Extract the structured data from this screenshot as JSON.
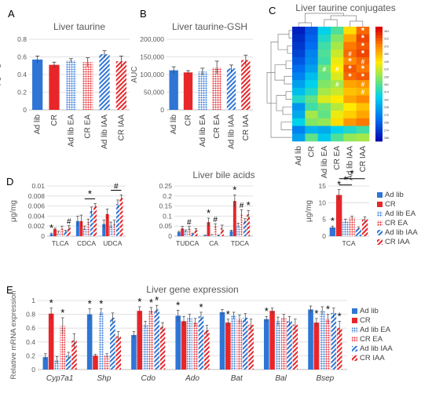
{
  "series": {
    "names": [
      "Ad lib",
      "CR",
      "Ad lib EA",
      "CR EA",
      "Ad lib IAA",
      "CR IAA"
    ],
    "colors": [
      "#2e75d6",
      "#e8262a",
      "#2e75d6",
      "#e8262a",
      "#2e75d6",
      "#e8262a"
    ],
    "patterns": [
      "solid",
      "solid",
      "dots",
      "dots",
      "hatch",
      "hatch"
    ]
  },
  "panels": {
    "A": "A",
    "B": "B",
    "C": "C",
    "D": "D",
    "E": "E"
  },
  "chart_data": [
    {
      "panel": "A",
      "type": "bar",
      "title": "Liver taurine",
      "ylabel": "μg/mg",
      "categories": [
        "Ad lib",
        "CR",
        "Ad lib EA",
        "CR EA",
        "Ad lib IAA",
        "CR IAA"
      ],
      "values": [
        0.57,
        0.51,
        0.56,
        0.54,
        0.63,
        0.55
      ],
      "errors": [
        0.04,
        0.03,
        0.02,
        0.05,
        0.04,
        0.06
      ],
      "ylim": [
        0,
        0.8
      ],
      "yticks": [
        0,
        0.2,
        0.4,
        0.6,
        0.8
      ],
      "ytick_labels": [
        "0",
        "0.2",
        "0.4",
        "0.6",
        "0.8"
      ]
    },
    {
      "panel": "B",
      "type": "bar",
      "title": "Liver taurine-GSH",
      "ylabel": "AUC",
      "categories": [
        "Ad lib",
        "CR",
        "Ad lib EA",
        "CR EA",
        "Ad lib IAA",
        "CR IAA"
      ],
      "values": [
        112000,
        106000,
        108000,
        120000,
        117000,
        141000
      ],
      "errors": [
        10000,
        5000,
        10000,
        18000,
        10000,
        14000
      ],
      "ylim": [
        0,
        200000
      ],
      "yticks": [
        0,
        50000,
        100000,
        150000,
        200000
      ],
      "ytick_labels": [
        "0",
        "50,000",
        "100,000",
        "150,000",
        "200,000"
      ]
    },
    {
      "panel": "C",
      "type": "heatmap",
      "title": "Liver taurine conjugates",
      "columns": [
        "Ad lib",
        "CR",
        "Ad lib EA",
        "CR EA",
        "Ad lib IAA",
        "CR IAA"
      ],
      "row_labels": [
        "364",
        "312",
        "372",
        "360",
        "446",
        "310",
        "290",
        "461",
        "474",
        "302",
        "228",
        "270",
        "258",
        "274",
        "266"
      ],
      "colorbar_max": 5,
      "values": [
        [
          0.3,
          0.8,
          2.0,
          2.5,
          3.6,
          4.4
        ],
        [
          0.4,
          0.9,
          2.2,
          2.8,
          4.0,
          4.6
        ],
        [
          0.5,
          1.0,
          2.4,
          3.0,
          4.3,
          4.5
        ],
        [
          0.6,
          1.2,
          2.5,
          3.2,
          4.4,
          4.6
        ],
        [
          0.8,
          1.3,
          2.4,
          3.4,
          4.2,
          4.4
        ],
        [
          1.0,
          1.5,
          2.7,
          3.5,
          4.5,
          4.3
        ],
        [
          1.2,
          1.8,
          2.6,
          3.3,
          4.4,
          4.5
        ],
        [
          1.5,
          2.0,
          2.8,
          3.0,
          4.0,
          4.1
        ],
        [
          1.8,
          2.2,
          3.0,
          3.2,
          3.8,
          3.9
        ],
        [
          2.2,
          2.6,
          3.3,
          3.5,
          4.0,
          4.2
        ],
        [
          1.4,
          2.4,
          2.7,
          3.1,
          3.5,
          3.8
        ],
        [
          1.6,
          3.0,
          2.6,
          3.4,
          3.7,
          4.0
        ],
        [
          2.0,
          2.8,
          2.9,
          3.6,
          4.1,
          4.3
        ],
        [
          1.2,
          1.7,
          1.6,
          2.0,
          2.2,
          2.4
        ],
        [
          1.5,
          2.6,
          1.9,
          2.5,
          2.9,
          3.0
        ]
      ],
      "annotations": [
        {
          "row": 0,
          "col": 5,
          "text": "*"
        },
        {
          "row": 1,
          "col": 5,
          "text": "*"
        },
        {
          "row": 2,
          "col": 5,
          "text": "*"
        },
        {
          "row": 3,
          "col": 4,
          "text": "#"
        },
        {
          "row": 3,
          "col": 5,
          "text": "*"
        },
        {
          "row": 4,
          "col": 4,
          "text": "*"
        },
        {
          "row": 4,
          "col": 5,
          "text": "#"
        },
        {
          "row": 5,
          "col": 2,
          "text": "#"
        },
        {
          "row": 5,
          "col": 3,
          "text": "#"
        },
        {
          "row": 5,
          "col": 4,
          "text": "*"
        },
        {
          "row": 5,
          "col": 5,
          "text": "*"
        },
        {
          "row": 6,
          "col": 4,
          "text": "*"
        },
        {
          "row": 6,
          "col": 5,
          "text": "*"
        },
        {
          "row": 7,
          "col": 3,
          "text": "#"
        },
        {
          "row": 7,
          "col": 5,
          "text": "#"
        },
        {
          "row": 8,
          "col": 5,
          "text": "#"
        }
      ]
    },
    {
      "panel": "D",
      "type": "bar",
      "title": "Liver bile acids",
      "groups": [
        {
          "ylabel": "μg/mg",
          "ylim": [
            0,
            0.01
          ],
          "yticks": [
            0,
            0.002,
            0.004,
            0.006,
            0.008,
            0.01
          ],
          "ytick_labels": [
            "0",
            "0.002",
            "0.004",
            "0.006",
            "0.008",
            "0.01"
          ],
          "categories": [
            "TLCA",
            "CDCA",
            "UDCA"
          ],
          "series_values": [
            [
              0.0004,
              0.003,
              0.0024
            ],
            [
              0.0014,
              0.003,
              0.0044
            ],
            [
              0.0008,
              0.0016,
              0.0022
            ],
            [
              0.0016,
              0.0028,
              0.0026
            ],
            [
              0.001,
              0.005,
              0.0064
            ],
            [
              0.0017,
              0.006,
              0.0076
            ]
          ],
          "series_errors": [
            [
              0.0002,
              0.001,
              0.0008
            ],
            [
              0.0002,
              0.0012,
              0.001
            ],
            [
              0.0002,
              0.0004,
              0.0006
            ],
            [
              0.0004,
              0.0006,
              0.0006
            ],
            [
              0.0002,
              0.0008,
              0.0008
            ],
            [
              0.0004,
              0.0005,
              0.0006
            ]
          ],
          "marks": [
            {
              "cat": 0,
              "series": 0,
              "text": "*"
            },
            {
              "cat": 0,
              "series": 5,
              "text": "#"
            },
            {
              "cat": 1,
              "from": 2,
              "to": 5,
              "text": "*"
            },
            {
              "cat": 2,
              "from": 2,
              "to": 5,
              "text": "#"
            }
          ]
        },
        {
          "ylabel": "",
          "ylim": [
            0,
            0.25
          ],
          "yticks": [
            0,
            0.05,
            0.1,
            0.15,
            0.2,
            0.25
          ],
          "ytick_labels": [
            "0",
            "0.05",
            "0.1",
            "0.15",
            "0.2",
            "0.25"
          ],
          "categories": [
            "TUDCA",
            "CA",
            "TDCA"
          ],
          "series_values": [
            [
              0.02,
              0.003,
              0.025
            ],
            [
              0.038,
              0.07,
              0.175
            ],
            [
              0.025,
              0.006,
              0.055
            ],
            [
              0.038,
              0.05,
              0.112
            ],
            [
              0.012,
              0.004,
              0.075
            ],
            [
              0.03,
              0.04,
              0.108
            ]
          ],
          "series_errors": [
            [
              0.004,
              0.002,
              0.005
            ],
            [
              0.01,
              0.02,
              0.03
            ],
            [
              0.006,
              0.002,
              0.01
            ],
            [
              0.01,
              0.012,
              0.02
            ],
            [
              0.003,
              0.002,
              0.012
            ],
            [
              0.008,
              0.015,
              0.02
            ]
          ],
          "marks": [
            {
              "cat": 0,
              "series": 3,
              "text": "#"
            },
            {
              "cat": 1,
              "series": 1,
              "text": "*"
            },
            {
              "cat": 1,
              "series": 3,
              "text": "#"
            },
            {
              "cat": 2,
              "series": 1,
              "text": "*"
            },
            {
              "cat": 2,
              "series": 3,
              "text": "#"
            },
            {
              "cat": 2,
              "series": 5,
              "text": "*"
            }
          ]
        },
        {
          "ylabel": "μg/mg",
          "ylim": [
            0,
            15
          ],
          "yticks": [
            0,
            5,
            10,
            15
          ],
          "ytick_labels": [
            "0",
            "5",
            "10",
            "15"
          ],
          "categories": [
            "TCA"
          ],
          "series_values": [
            [
              2.6
            ],
            [
              12.3
            ],
            [
              4.5
            ],
            [
              5.5
            ],
            [
              2.4
            ],
            [
              5.0
            ]
          ],
          "series_errors": [
            [
              0.4
            ],
            [
              1.6
            ],
            [
              0.6
            ],
            [
              0.5
            ],
            [
              0.4
            ],
            [
              0.8
            ]
          ],
          "marks": [
            {
              "cat": 0,
              "series": 0,
              "text": "*"
            },
            {
              "cat": 0,
              "series": 1,
              "text": "*"
            },
            {
              "cat": 0,
              "from": 1,
              "to": 3,
              "text": "*"
            },
            {
              "cat": 0,
              "from": 1,
              "to": 5,
              "text": "*"
            }
          ]
        }
      ]
    },
    {
      "panel": "E",
      "type": "bar",
      "title": "Liver gene expression",
      "ylabel": "Relative mRNA expression",
      "ylim": [
        0,
        1
      ],
      "yticks": [
        0,
        0.2,
        0.4,
        0.6,
        0.8,
        1
      ],
      "ytick_labels": [
        "0",
        "0.2",
        "0.4",
        "0.6",
        "0.8",
        "1"
      ],
      "categories": [
        "Cyp7a1",
        "Shp",
        "Cdo",
        "Ado",
        "Bat",
        "Bal",
        "Bsep"
      ],
      "series_values": [
        [
          0.18,
          0.8,
          0.5,
          0.78,
          0.83,
          0.73,
          0.87
        ],
        [
          0.81,
          0.2,
          0.85,
          0.7,
          0.68,
          0.85,
          0.68
        ],
        [
          0.14,
          0.83,
          0.65,
          0.75,
          0.78,
          0.7,
          0.85
        ],
        [
          0.63,
          0.2,
          0.85,
          0.68,
          0.73,
          0.75,
          0.73
        ],
        [
          0.2,
          0.75,
          0.87,
          0.77,
          0.75,
          0.7,
          0.82
        ],
        [
          0.42,
          0.48,
          0.62,
          0.57,
          0.65,
          0.65,
          0.6
        ]
      ],
      "series_errors": [
        [
          0.05,
          0.08,
          0.05,
          0.08,
          0.04,
          0.04,
          0.05
        ],
        [
          0.08,
          0.02,
          0.06,
          0.07,
          0.05,
          0.04,
          0.06
        ],
        [
          0.05,
          0.05,
          0.05,
          0.05,
          0.05,
          0.06,
          0.06
        ],
        [
          0.12,
          0.03,
          0.05,
          0.06,
          0.06,
          0.05,
          0.07
        ],
        [
          0.05,
          0.07,
          0.06,
          0.06,
          0.06,
          0.07,
          0.07
        ],
        [
          0.1,
          0.07,
          0.06,
          0.07,
          0.08,
          0.08,
          0.1
        ]
      ],
      "marks": [
        {
          "cat": 0,
          "series": 1,
          "text": "*"
        },
        {
          "cat": 0,
          "series": 3,
          "text": "*"
        },
        {
          "cat": 1,
          "series": 0,
          "text": "*"
        },
        {
          "cat": 1,
          "series": 2,
          "text": "*"
        },
        {
          "cat": 2,
          "series": 1,
          "text": "*"
        },
        {
          "cat": 2,
          "series": 3,
          "text": "*"
        },
        {
          "cat": 2,
          "series": 4,
          "text": "*"
        },
        {
          "cat": 3,
          "series": 0,
          "text": "*"
        },
        {
          "cat": 3,
          "series": 4,
          "text": "*"
        },
        {
          "cat": 4,
          "series": 1,
          "text": "*"
        },
        {
          "cat": 5,
          "series": 0,
          "text": "*"
        },
        {
          "cat": 6,
          "series": 1,
          "text": "*"
        },
        {
          "cat": 6,
          "series": 3,
          "text": "*"
        },
        {
          "cat": 6,
          "series": 5,
          "text": "*"
        }
      ]
    }
  ]
}
